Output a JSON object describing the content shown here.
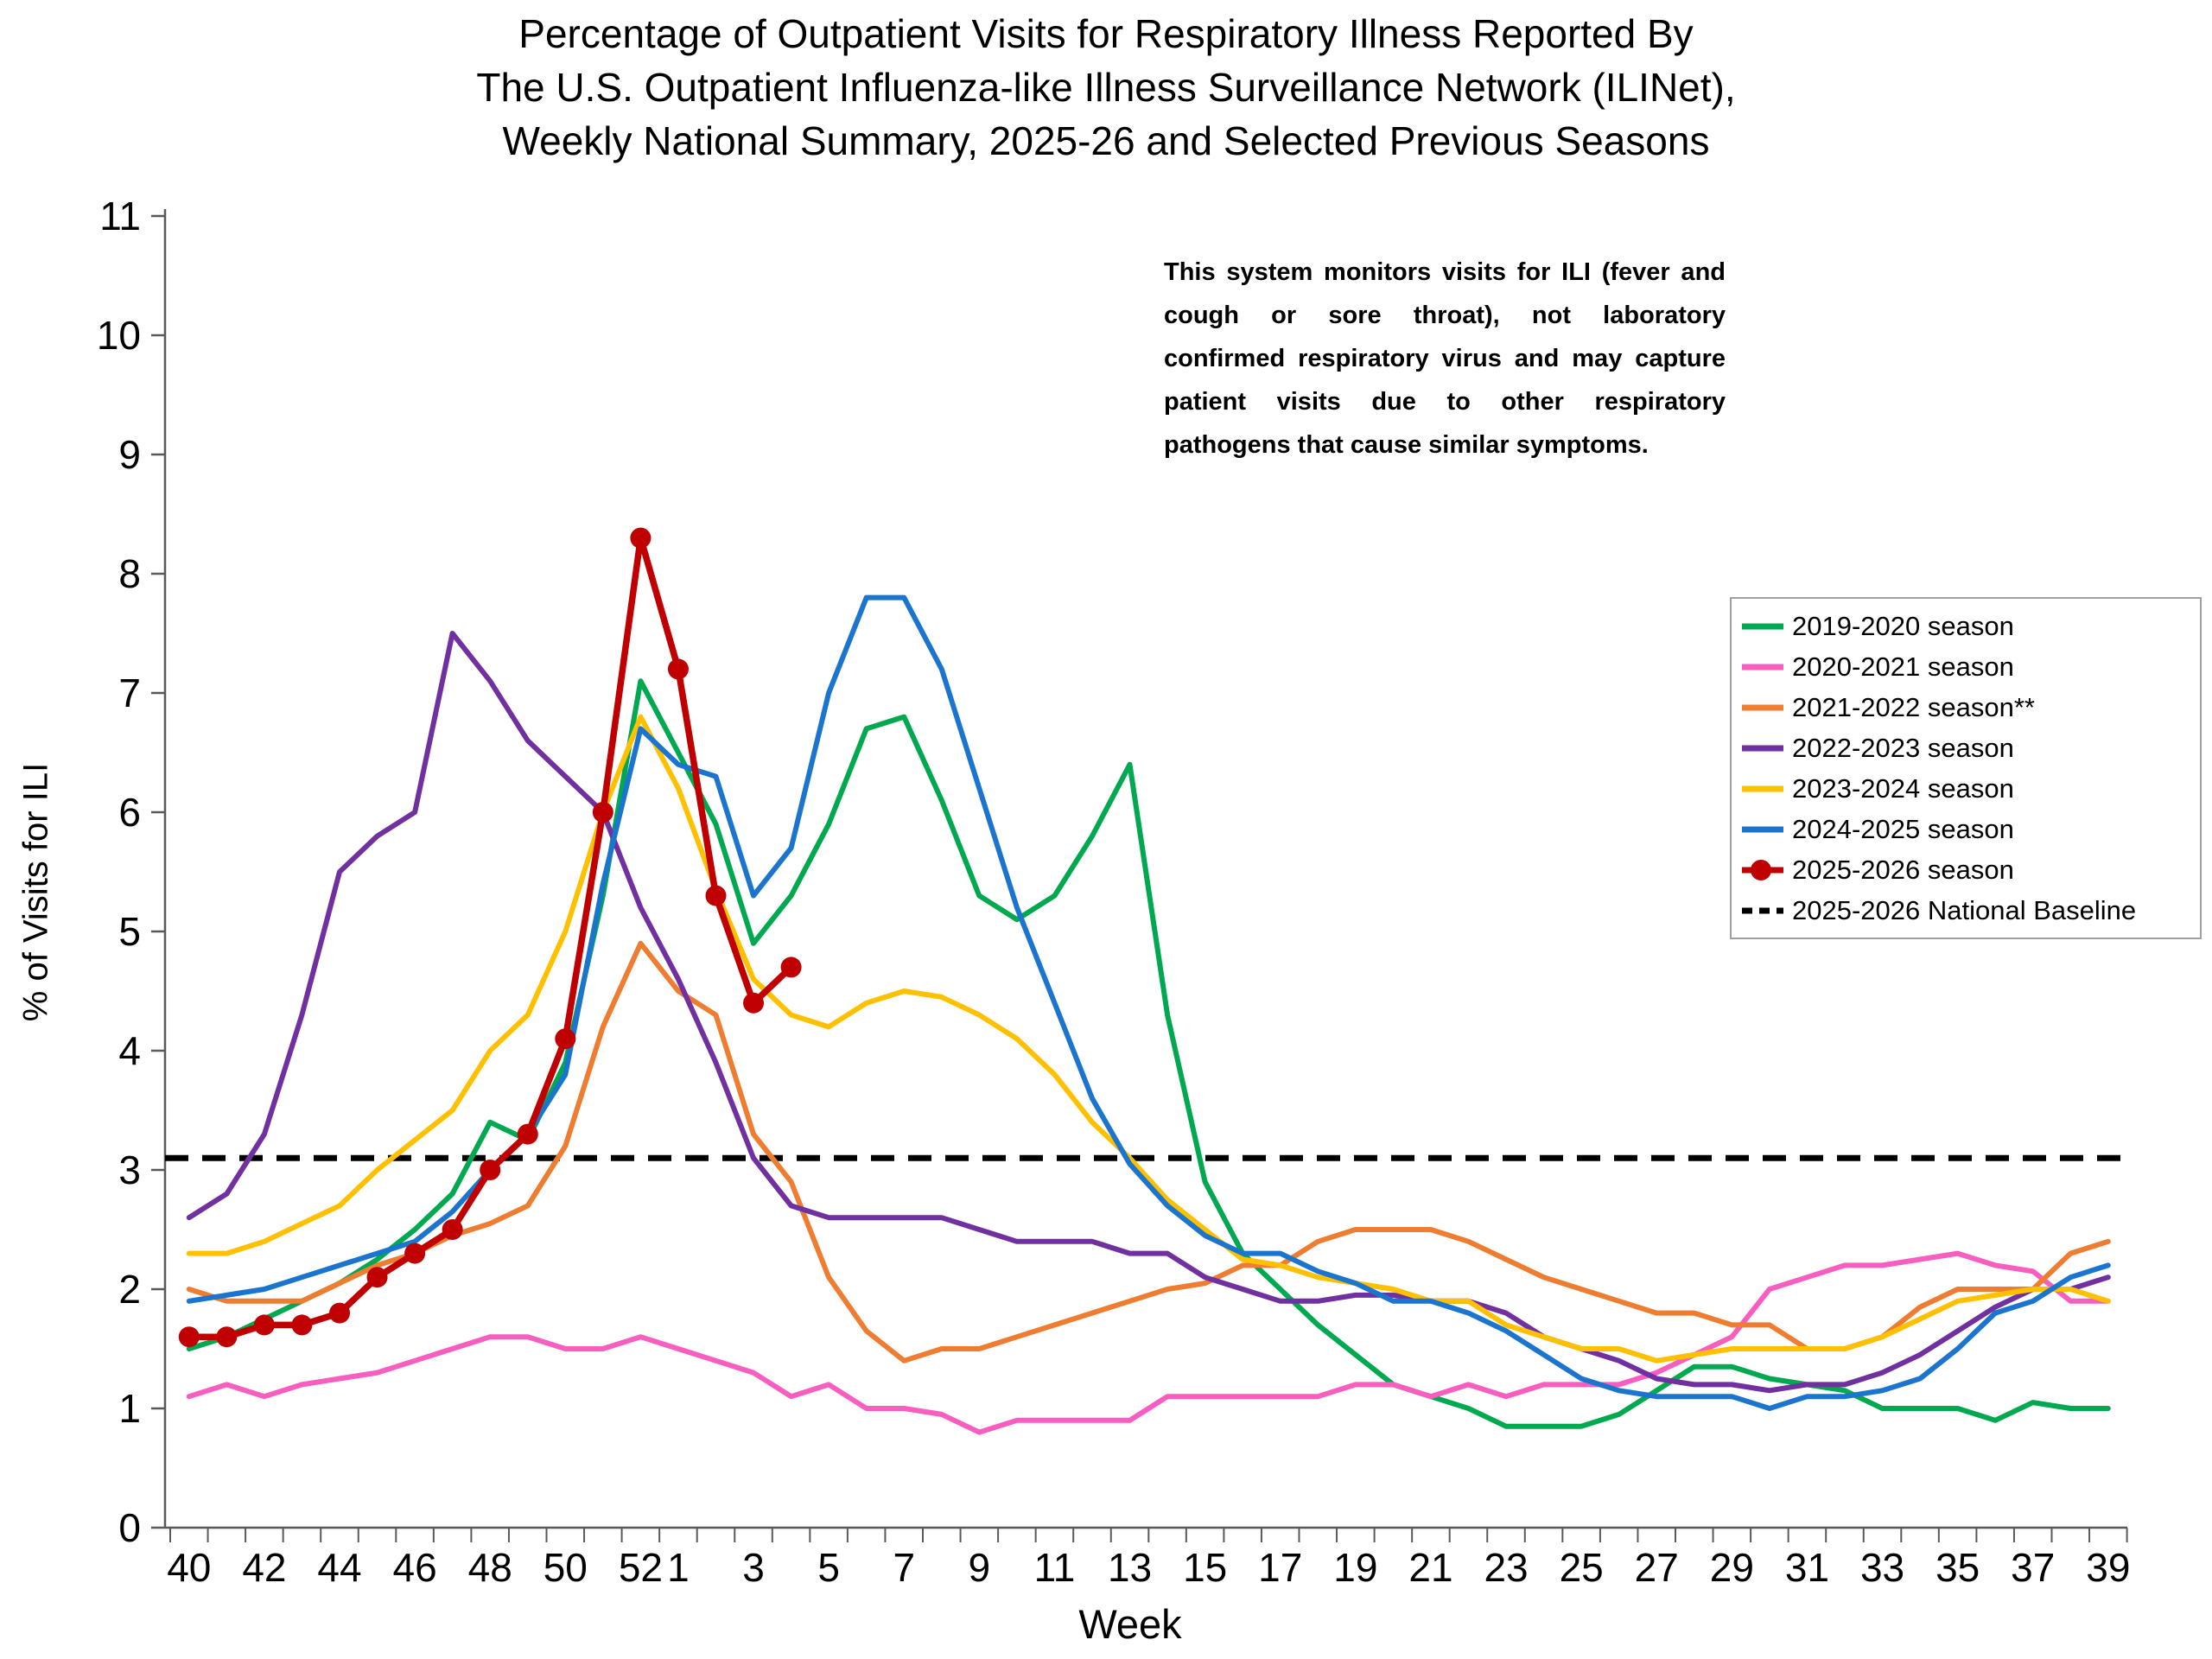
{
  "title": {
    "line1": "Percentage of Outpatient Visits for Respiratory Illness Reported By",
    "line2": "The U.S. Outpatient Influenza-like Illness Surveillance Network (ILINet),",
    "line3": "Weekly National Summary, 2025-26 and Selected Previous Seasons"
  },
  "annotation": {
    "text": "This system monitors visits for ILI (fever and cough or sore throat), not laboratory confirmed respiratory virus and may capture patient visits due to other respiratory pathogens that cause similar symptoms."
  },
  "axes": {
    "x_label": "Week",
    "y_label": "% of Visits for ILI",
    "y_ticks": [
      0,
      1,
      2,
      3,
      4,
      5,
      6,
      7,
      8,
      9,
      10,
      11
    ],
    "x_tick_labels": [
      "40",
      "42",
      "44",
      "46",
      "48",
      "50",
      "52",
      "1",
      "3",
      "5",
      "7",
      "9",
      "11",
      "13",
      "15",
      "17",
      "19",
      "21",
      "23",
      "25",
      "27",
      "29",
      "31",
      "33",
      "35",
      "37",
      "39"
    ]
  },
  "chart_data": {
    "type": "line",
    "title": "Percentage of Outpatient Visits for Respiratory Illness Reported By The U.S. Outpatient Influenza-like Illness Surveillance Network (ILINet), Weekly National Summary, 2025-26 and Selected Previous Seasons",
    "xlabel": "Week",
    "ylabel": "% of Visits for ILI",
    "ylim": [
      0,
      11
    ],
    "grid": false,
    "legend_position": "right",
    "categories": [
      "40",
      "41",
      "42",
      "43",
      "44",
      "45",
      "46",
      "47",
      "48",
      "49",
      "50",
      "51",
      "52",
      "1",
      "2",
      "3",
      "4",
      "5",
      "6",
      "7",
      "8",
      "9",
      "10",
      "11",
      "12",
      "13",
      "14",
      "15",
      "16",
      "17",
      "18",
      "19",
      "20",
      "21",
      "22",
      "23",
      "24",
      "25",
      "26",
      "27",
      "28",
      "29",
      "30",
      "31",
      "32",
      "33",
      "34",
      "35",
      "36",
      "37",
      "38",
      "39"
    ],
    "series": [
      {
        "name": "2019-2020 season",
        "color": "#00A94F",
        "marker": "none",
        "values": [
          1.5,
          1.6,
          1.75,
          1.9,
          2.05,
          2.25,
          2.5,
          2.8,
          3.4,
          3.25,
          3.9,
          5.3,
          7.1,
          6.5,
          5.9,
          4.9,
          5.3,
          5.9,
          6.7,
          6.8,
          6.1,
          5.3,
          5.1,
          5.3,
          5.8,
          6.4,
          4.3,
          2.9,
          2.3,
          2.0,
          1.7,
          1.45,
          1.2,
          1.1,
          1.0,
          0.85,
          0.85,
          0.85,
          0.95,
          1.15,
          1.35,
          1.35,
          1.25,
          1.2,
          1.15,
          1.0,
          1.0,
          1.0,
          0.9,
          1.05,
          1.0,
          1.0
        ]
      },
      {
        "name": "2020-2021 season",
        "color": "#F75EC0",
        "marker": "none",
        "values": [
          1.1,
          1.2,
          1.1,
          1.2,
          1.25,
          1.3,
          1.4,
          1.5,
          1.6,
          1.6,
          1.5,
          1.5,
          1.6,
          1.5,
          1.4,
          1.3,
          1.1,
          1.2,
          1.0,
          1.0,
          0.95,
          0.8,
          0.9,
          0.9,
          0.9,
          0.9,
          1.1,
          1.1,
          1.1,
          1.1,
          1.1,
          1.2,
          1.2,
          1.1,
          1.2,
          1.1,
          1.2,
          1.2,
          1.2,
          1.3,
          1.45,
          1.6,
          2.0,
          2.1,
          2.2,
          2.2,
          2.25,
          2.3,
          2.2,
          2.15,
          1.9,
          1.9
        ]
      },
      {
        "name": "2021-2022 season**",
        "color": "#EE7D31",
        "marker": "none",
        "values": [
          2.0,
          1.9,
          1.9,
          1.9,
          2.05,
          2.2,
          2.3,
          2.45,
          2.55,
          2.7,
          3.2,
          4.2,
          4.9,
          4.5,
          4.3,
          3.3,
          2.9,
          2.1,
          1.65,
          1.4,
          1.5,
          1.5,
          1.6,
          1.7,
          1.8,
          1.9,
          2.0,
          2.05,
          2.2,
          2.2,
          2.4,
          2.5,
          2.5,
          2.5,
          2.4,
          2.25,
          2.1,
          2.0,
          1.9,
          1.8,
          1.8,
          1.7,
          1.7,
          1.5,
          1.5,
          1.6,
          1.85,
          2.0,
          2.0,
          2.0,
          2.3,
          2.4
        ]
      },
      {
        "name": "2022-2023 season",
        "color": "#7030A0",
        "marker": "none",
        "values": [
          2.6,
          2.8,
          3.3,
          4.3,
          5.5,
          5.8,
          6.0,
          7.5,
          7.1,
          6.6,
          6.3,
          6.0,
          5.2,
          4.6,
          3.9,
          3.1,
          2.7,
          2.6,
          2.6,
          2.6,
          2.6,
          2.5,
          2.4,
          2.4,
          2.4,
          2.3,
          2.3,
          2.1,
          2.0,
          1.9,
          1.9,
          1.95,
          1.95,
          1.9,
          1.9,
          1.8,
          1.6,
          1.5,
          1.4,
          1.25,
          1.2,
          1.2,
          1.15,
          1.2,
          1.2,
          1.3,
          1.45,
          1.65,
          1.85,
          2.0,
          2.0,
          2.1
        ]
      },
      {
        "name": "2023-2024 season",
        "color": "#FFC000",
        "marker": "none",
        "values": [
          2.3,
          2.3,
          2.4,
          2.55,
          2.7,
          3.0,
          3.25,
          3.5,
          4.0,
          4.3,
          5.0,
          6.0,
          6.8,
          6.2,
          5.35,
          4.6,
          4.3,
          4.2,
          4.4,
          4.5,
          4.45,
          4.3,
          4.1,
          3.8,
          3.4,
          3.1,
          2.75,
          2.5,
          2.25,
          2.2,
          2.1,
          2.05,
          2.0,
          1.9,
          1.9,
          1.7,
          1.6,
          1.5,
          1.5,
          1.4,
          1.45,
          1.5,
          1.5,
          1.5,
          1.5,
          1.6,
          1.75,
          1.9,
          1.95,
          2.0,
          2.0,
          1.9
        ]
      },
      {
        "name": "2024-2025 season",
        "color": "#1B75CE",
        "marker": "none",
        "values": [
          1.9,
          1.95,
          2.0,
          2.1,
          2.2,
          2.3,
          2.4,
          2.65,
          3.0,
          3.3,
          3.8,
          5.4,
          6.7,
          6.4,
          6.3,
          5.3,
          5.7,
          7.0,
          7.8,
          7.8,
          7.2,
          6.2,
          5.2,
          4.4,
          3.6,
          3.05,
          2.7,
          2.45,
          2.3,
          2.3,
          2.15,
          2.05,
          1.9,
          1.9,
          1.8,
          1.65,
          1.45,
          1.25,
          1.15,
          1.1,
          1.1,
          1.1,
          1.0,
          1.1,
          1.1,
          1.15,
          1.25,
          1.5,
          1.8,
          1.9,
          2.1,
          2.2
        ]
      },
      {
        "name": "2025-2026 season",
        "color": "#C00000",
        "marker": "dot",
        "values": [
          1.6,
          1.6,
          1.7,
          1.7,
          1.8,
          2.1,
          2.3,
          2.5,
          3.0,
          3.3,
          4.1,
          6.0,
          8.3,
          7.2,
          5.3,
          4.4,
          4.7,
          null,
          null,
          null,
          null,
          null,
          null,
          null,
          null,
          null,
          null,
          null,
          null,
          null,
          null,
          null,
          null,
          null,
          null,
          null,
          null,
          null,
          null,
          null,
          null,
          null,
          null,
          null,
          null,
          null,
          null,
          null,
          null,
          null,
          null,
          null
        ]
      }
    ],
    "baseline": {
      "name": "2025-2026 National Baseline",
      "value": 3.1,
      "style": "dashed",
      "color": "#000000"
    }
  }
}
